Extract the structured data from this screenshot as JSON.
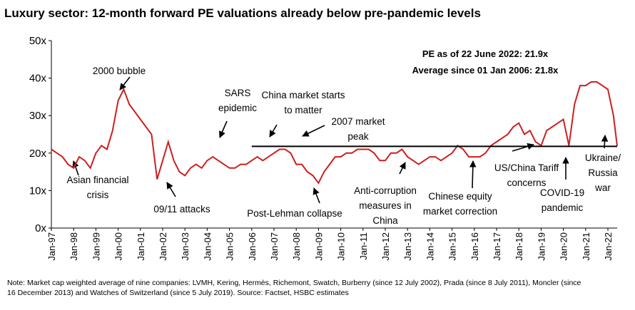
{
  "chart_data": {
    "type": "line",
    "title": "Luxury sector: 12-month forward PE valuations already below pre-pandemic levels",
    "info": [
      "PE as of 22 June 2022: 21.9x",
      "Average since 01 Jan 2006: 21.8x"
    ],
    "x": [
      "Jan-97",
      "Apr-97",
      "Jul-97",
      "Oct-97",
      "Jan-98",
      "Apr-98",
      "Jul-98",
      "Oct-98",
      "Jan-99",
      "Apr-99",
      "Jul-99",
      "Oct-99",
      "Jan-00",
      "Apr-00",
      "Jul-00",
      "Oct-00",
      "Jan-01",
      "Apr-01",
      "Jul-01",
      "Oct-01",
      "Jan-02",
      "Apr-02",
      "Jul-02",
      "Oct-02",
      "Jan-03",
      "Apr-03",
      "Jul-03",
      "Oct-03",
      "Jan-04",
      "Apr-04",
      "Jul-04",
      "Oct-04",
      "Jan-05",
      "Apr-05",
      "Jul-05",
      "Oct-05",
      "Jan-06",
      "Apr-06",
      "Jul-06",
      "Oct-06",
      "Jan-07",
      "Apr-07",
      "Jul-07",
      "Oct-07",
      "Jan-08",
      "Apr-08",
      "Jul-08",
      "Oct-08",
      "Jan-09",
      "Apr-09",
      "Jul-09",
      "Oct-09",
      "Jan-10",
      "Apr-10",
      "Jul-10",
      "Oct-10",
      "Jan-11",
      "Apr-11",
      "Jul-11",
      "Oct-11",
      "Jan-12",
      "Apr-12",
      "Jul-12",
      "Oct-12",
      "Jan-13",
      "Apr-13",
      "Jul-13",
      "Oct-13",
      "Jan-14",
      "Apr-14",
      "Jul-14",
      "Oct-14",
      "Jan-15",
      "Apr-15",
      "Jul-15",
      "Oct-15",
      "Jan-16",
      "Apr-16",
      "Jul-16",
      "Oct-16",
      "Jan-17",
      "Apr-17",
      "Jul-17",
      "Oct-17",
      "Jan-18",
      "Apr-18",
      "Jul-18",
      "Oct-18",
      "Jan-19",
      "Apr-19",
      "Jul-19",
      "Oct-19",
      "Jan-20",
      "Apr-20",
      "Jul-20",
      "Oct-20",
      "Jan-21",
      "Apr-21",
      "Jul-21",
      "Oct-21",
      "Jan-22",
      "Apr-22",
      "Jun-22"
    ],
    "values": [
      21,
      20,
      19,
      17,
      16,
      19,
      18,
      16,
      20,
      22,
      21,
      26,
      34,
      37,
      33,
      31,
      29,
      27,
      25,
      13,
      18,
      23,
      18,
      15,
      14,
      16,
      17,
      16,
      18,
      19,
      18,
      17,
      16,
      16,
      17,
      17,
      18,
      19,
      18,
      19,
      20,
      21,
      21,
      20,
      17,
      17,
      15,
      14,
      12,
      15,
      17,
      19,
      19,
      20,
      20,
      21,
      21,
      21,
      20,
      18,
      18,
      20,
      20,
      21,
      19,
      18,
      17,
      18,
      19,
      19,
      18,
      19,
      20,
      22,
      21,
      19,
      19,
      19,
      20,
      22,
      23,
      24,
      25,
      27,
      28,
      25,
      26,
      23,
      22,
      26,
      27,
      28,
      29,
      22,
      33,
      38,
      38,
      39,
      39,
      38,
      37,
      30,
      21.9
    ],
    "color": "#cc1f1f",
    "average": {
      "value": 21.8,
      "from": "Jan-06"
    },
    "xlim": [
      "Jan-97",
      "Jun-22"
    ],
    "xticks": [
      "Jan-97",
      "Jan-98",
      "Jan-99",
      "Jan-00",
      "Jan-01",
      "Jan-02",
      "Jan-03",
      "Jan-04",
      "Jan-05",
      "Jan-06",
      "Jan-07",
      "Jan-08",
      "Jan-09",
      "Jan-10",
      "Jan-11",
      "Jan-12",
      "Jan-13",
      "Jan-14",
      "Jan-15",
      "Jan-16",
      "Jan-17",
      "Jan-18",
      "Jan-19",
      "Jan-20",
      "Jan-21",
      "Jan-22"
    ],
    "ylim": [
      0,
      50
    ],
    "yticks": [
      {
        "value": 0,
        "label": "0x"
      },
      {
        "value": 10,
        "label": "10x"
      },
      {
        "value": 20,
        "label": "20x"
      },
      {
        "value": 30,
        "label": "30x"
      },
      {
        "value": 40,
        "label": "40x"
      },
      {
        "value": 50,
        "label": "50x"
      }
    ],
    "annotations": [
      [
        "2000 bubble"
      ],
      [
        "Asian financial",
        "crisis"
      ],
      [
        "09/11 attacks"
      ],
      [
        "SARS",
        "epidemic"
      ],
      [
        "China market starts",
        "to matter"
      ],
      [
        "2007 market",
        "peak"
      ],
      [
        "Post-Lehman collapse"
      ],
      [
        "Anti-corruption",
        "measures in",
        "China"
      ],
      [
        "Chinese equity",
        "market correction"
      ],
      [
        "US/China Tariff",
        "concerns"
      ],
      [
        "COVID-19",
        "pandemic"
      ],
      [
        "Ukraine/",
        "Russia",
        "war"
      ]
    ],
    "note": [
      "Note: Market cap weighted average of nine companies: LVMH, Kering, Hermès, Richemont, Swatch, Burberry (since 12 July 2002), Prada (since 8 July 2011), Moncler (since",
      "16 December 2013) and Watches of Switzerland (since 5 July 2019). Source: Factset, HSBC estimates"
    ]
  }
}
